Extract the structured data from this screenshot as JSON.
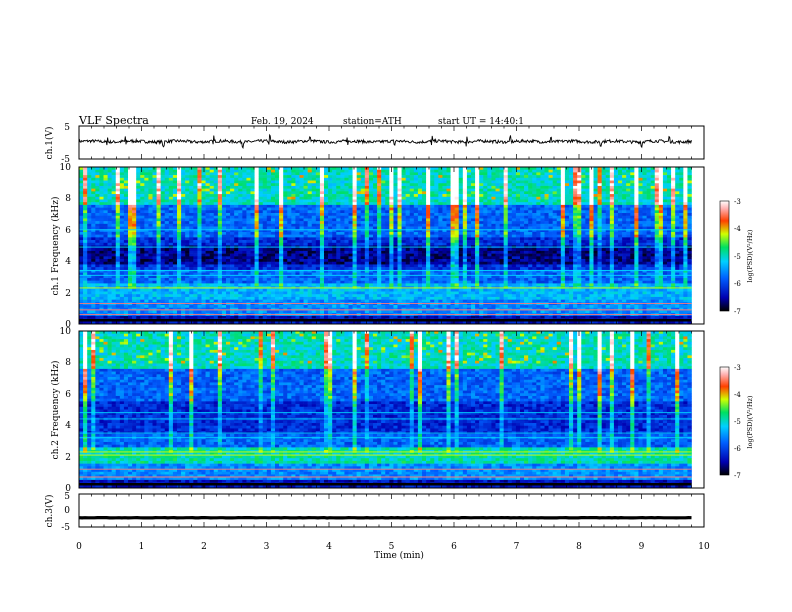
{
  "header": {
    "title": "VLF Spectra",
    "date": "Feb. 19, 2024",
    "station": "station=ATH",
    "start": "start UT = 14:40:1"
  },
  "chart_data": [
    {
      "id": "ch1-waveform",
      "type": "line",
      "ylabel": "ch.1(V)",
      "ylim": [
        -5,
        5
      ],
      "yticks": [
        "5",
        "-5"
      ],
      "xlim": [
        0,
        10
      ],
      "trace": {
        "x_end": 9.8,
        "baseline": 0.3,
        "amplitude": 0.45,
        "spikes": [
          0.45,
          0.75,
          1.35,
          2.15,
          2.62,
          3.05,
          3.7,
          4.3,
          5.05,
          5.65,
          6.2,
          6.9,
          7.55,
          8.35,
          9.0,
          9.45
        ],
        "color": "#000000"
      }
    },
    {
      "id": "ch1-spectrogram",
      "type": "heatmap",
      "ylabel": "ch.1 Frequency (kHz)",
      "xlim": [
        0,
        10
      ],
      "ylim": [
        0,
        10
      ],
      "yticks": [
        "0",
        "2",
        "4",
        "6",
        "8",
        "10"
      ],
      "data_extent_x": 9.8,
      "colorbar": {
        "label": "log(PSD)(V²/Hz)",
        "range": [
          -7,
          -3
        ],
        "ticks": [
          "-3",
          "-4",
          "-5",
          "-6",
          "-7"
        ]
      }
    },
    {
      "id": "ch2-spectrogram",
      "type": "heatmap",
      "ylabel": "ch.2 Frequency (kHz)",
      "xlim": [
        0,
        10
      ],
      "ylim": [
        0,
        10
      ],
      "yticks": [
        "0",
        "2",
        "4",
        "6",
        "8",
        "10"
      ],
      "data_extent_x": 9.8,
      "colorbar": {
        "label": "log(PSD)(V²/Hz)",
        "range": [
          -7,
          -3
        ],
        "ticks": [
          "-3",
          "-4",
          "-5",
          "-6",
          "-7"
        ]
      }
    },
    {
      "id": "ch3-waveform",
      "type": "line",
      "ylabel": "ch.3(V)",
      "ylim": [
        -5,
        5
      ],
      "yticks": [
        "5",
        "0",
        "-5"
      ],
      "xlim": [
        0,
        10
      ],
      "trace": {
        "x_end": 9.8,
        "baseline": -2.2,
        "amplitude": 0.3,
        "color": "#000000"
      }
    }
  ],
  "xaxis": {
    "label": "Time (min)",
    "ticks": [
      "0",
      "1",
      "2",
      "3",
      "4",
      "5",
      "6",
      "7",
      "8",
      "9",
      "10"
    ]
  }
}
